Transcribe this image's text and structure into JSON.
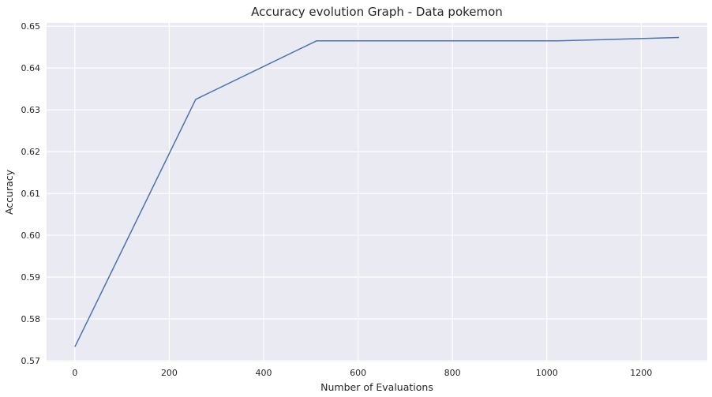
{
  "chart_data": {
    "type": "line",
    "title": "Accuracy evolution Graph - Data pokemon",
    "xlabel": "Number of Evaluations",
    "ylabel": "Accuracy",
    "xlim": [
      -60,
      1340
    ],
    "ylim": [
      0.5698,
      0.6508
    ],
    "xticks": [
      0,
      200,
      400,
      600,
      800,
      1000,
      1200
    ],
    "yticks": [
      0.57,
      0.58,
      0.59,
      0.6,
      0.61,
      0.62,
      0.63,
      0.64,
      0.65
    ],
    "xtick_labels": [
      "0",
      "200",
      "400",
      "600",
      "800",
      "1000",
      "1200"
    ],
    "ytick_labels": [
      "0.57",
      "0.58",
      "0.59",
      "0.60",
      "0.61",
      "0.62",
      "0.63",
      "0.64",
      "0.65"
    ],
    "grid": true,
    "legend": "none",
    "series": [
      {
        "x": [
          0,
          256,
          512,
          1024,
          1280
        ],
        "y": [
          0.5733,
          0.6325,
          0.6465,
          0.6465,
          0.6473
        ],
        "color": "#4c72b0"
      }
    ]
  },
  "style": {
    "plot_background": "#eaeaf2",
    "grid_color": "#ffffff",
    "line_color": "#4c72b0"
  }
}
